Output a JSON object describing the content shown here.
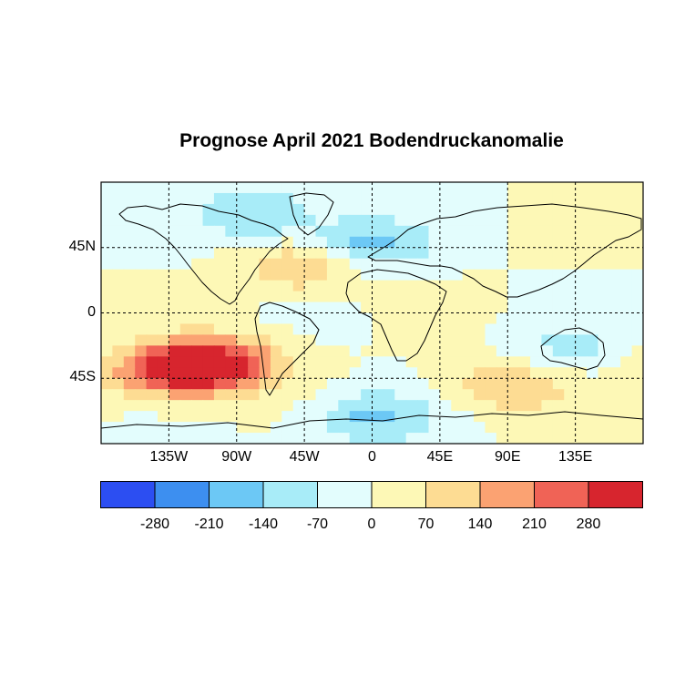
{
  "title": "Prognose April 2021 Bodendruckanomalie",
  "map": {
    "lon_range": [
      -180,
      180
    ],
    "lat_range": [
      -90,
      90
    ],
    "projection": "equirectangular",
    "lon_ticks": [
      {
        "lon": -135,
        "label": "135W"
      },
      {
        "lon": -90,
        "label": "90W"
      },
      {
        "lon": -45,
        "label": "45W"
      },
      {
        "lon": 0,
        "label": "0"
      },
      {
        "lon": 45,
        "label": "45E"
      },
      {
        "lon": 90,
        "label": "90E"
      },
      {
        "lon": 135,
        "label": "135E"
      }
    ],
    "lat_ticks": [
      {
        "lat": 45,
        "label": "45N"
      },
      {
        "lat": 0,
        "label": "0"
      },
      {
        "lat": -45,
        "label": "45S"
      }
    ],
    "anomaly_fields": [
      {
        "region": "North Atlantic / Western Europe low",
        "lon": -5,
        "lat": 47,
        "value": -180
      },
      {
        "region": "Southern Pacific high",
        "lon": -135,
        "lat": -40,
        "value": 300
      },
      {
        "region": "Southeast Pacific high",
        "lon": -100,
        "lat": -35,
        "value": 280
      },
      {
        "region": "Subtropical North Atlantic high",
        "lon": -45,
        "lat": 32,
        "value": 150
      },
      {
        "region": "Southern Ocean low band",
        "lon": 0,
        "lat": -72,
        "value": -160
      },
      {
        "region": "Arctic Canada low",
        "lon": -75,
        "lat": 68,
        "value": -150
      },
      {
        "region": "Australia low",
        "lon": 130,
        "lat": -25,
        "value": -90
      },
      {
        "region": "Southern Indian Ocean high",
        "lon": 90,
        "lat": -50,
        "value": 140
      }
    ]
  },
  "colorbar": {
    "colors": [
      "#2c4ef2",
      "#3d8ff0",
      "#6cc8f5",
      "#a8ecf8",
      "#e3fdfd",
      "#fdf8b6",
      "#fddc93",
      "#fba272",
      "#f06356",
      "#d7252e"
    ],
    "tick_labels": [
      "-280",
      "-210",
      "-140",
      "-70",
      "0",
      "70",
      "140",
      "210",
      "280"
    ]
  }
}
